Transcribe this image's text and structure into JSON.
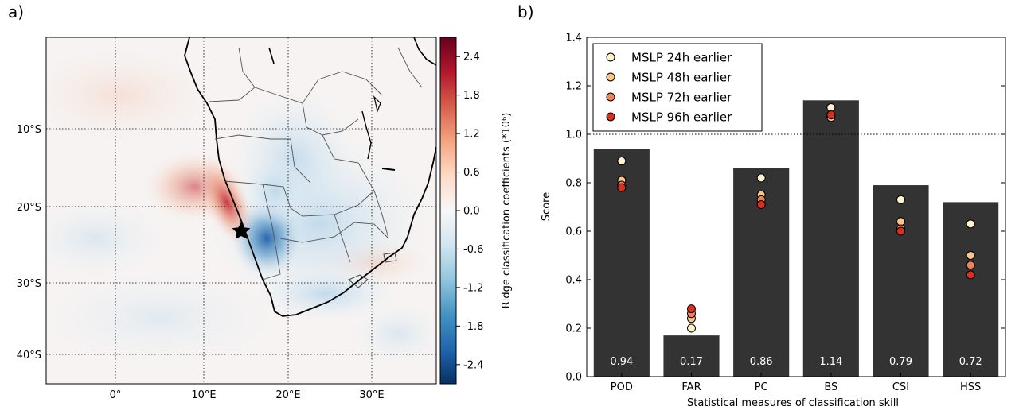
{
  "panel_a": {
    "label": "a)",
    "lat_ticks": [
      "10°S",
      "20°S",
      "30°S",
      "40°S"
    ],
    "lon_ticks": [
      "0°",
      "10°E",
      "20°E",
      "30°E"
    ],
    "colorbar": {
      "label": "Ridge classification coefficients (*10⁶)",
      "ticks": [
        "2.4",
        "1.8",
        "1.2",
        "0.6",
        "0.0",
        "-0.6",
        "-1.2",
        "-1.8",
        "-2.4"
      ],
      "range": [
        -2.7,
        2.7
      ],
      "colors": [
        "#053061",
        "#2166ac",
        "#4393c3",
        "#92c5de",
        "#d1e5f0",
        "#f7f7f7",
        "#fddbc7",
        "#f4a582",
        "#d6604d",
        "#b2182b",
        "#67001f"
      ]
    },
    "marker": "star-marker"
  },
  "chart_data": {
    "type": "bar",
    "label": "b)",
    "categories": [
      "POD",
      "FAR",
      "PC",
      "BS",
      "CSI",
      "HSS"
    ],
    "values": [
      0.94,
      0.17,
      0.86,
      1.14,
      0.79,
      0.72
    ],
    "value_labels": [
      "0.94",
      "0.17",
      "0.86",
      "1.14",
      "0.79",
      "0.72"
    ],
    "bar_color": "#333333",
    "ylim": [
      0.0,
      1.4
    ],
    "yticks": [
      "0.0",
      "0.2",
      "0.4",
      "0.6",
      "0.8",
      "1.0",
      "1.2",
      "1.4"
    ],
    "ylabel": "Score",
    "xlabel": "Statistical measures of classification skill",
    "reference_line": 1.0,
    "legend_position": "top-left",
    "series": [
      {
        "name": "MSLP 24h earlier",
        "color": "#fff2cc",
        "values": [
          0.89,
          0.2,
          0.82,
          1.11,
          0.73,
          0.63
        ]
      },
      {
        "name": "MSLP 48h earlier",
        "color": "#fdc58a",
        "values": [
          0.81,
          0.24,
          0.75,
          1.07,
          0.64,
          0.5
        ]
      },
      {
        "name": "MSLP 72h earlier",
        "color": "#f3825a",
        "values": [
          0.79,
          0.26,
          0.73,
          1.08,
          0.61,
          0.46
        ]
      },
      {
        "name": "MSLP 96h earlier",
        "color": "#d7301f",
        "values": [
          0.78,
          0.28,
          0.71,
          1.08,
          0.6,
          0.42
        ]
      }
    ]
  }
}
